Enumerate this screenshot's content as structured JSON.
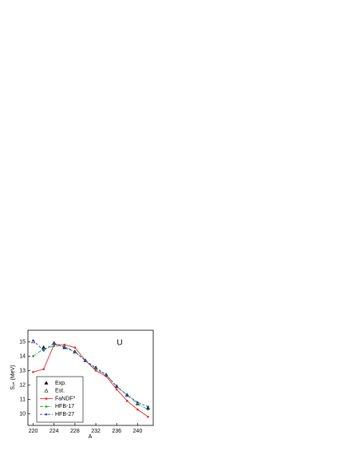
{
  "chart_data": {
    "type": "line",
    "annotation": "U",
    "xlabel": "A",
    "ylabel": "S₂ₙ (MeV)",
    "x": [
      220,
      222,
      224,
      226,
      228,
      230,
      232,
      234,
      236,
      238,
      240,
      242
    ],
    "series": [
      {
        "name": "Exp.",
        "color": "#000000",
        "marker": "triangle",
        "line": "none",
        "values": [
          null,
          14.6,
          14.9,
          14.6,
          14.3,
          13.7,
          13.2,
          12.7,
          11.9,
          11.3,
          10.7,
          10.4
        ]
      },
      {
        "name": "Est.",
        "color": "#000000",
        "marker": "triangle-open",
        "line": "none",
        "values": [
          15.0,
          null,
          null,
          null,
          null,
          null,
          null,
          null,
          null,
          null,
          null,
          null
        ]
      },
      {
        "name": "FaNDF⁰",
        "color": "#e8251f",
        "marker": "circle",
        "line": "solid",
        "values": [
          12.9,
          13.1,
          14.8,
          14.8,
          14.6,
          13.7,
          13.0,
          12.6,
          11.7,
          10.9,
          10.3,
          9.8
        ]
      },
      {
        "name": "HFB-17",
        "color": "#2a9a3a",
        "marker": "circle",
        "line": "dashdot",
        "values": [
          14.0,
          14.5,
          14.7,
          14.7,
          14.3,
          13.7,
          13.1,
          12.7,
          11.9,
          11.3,
          10.7,
          10.3
        ]
      },
      {
        "name": "HFB-27",
        "color": "#1f3fbf",
        "marker": "circle",
        "line": "dash",
        "values": [
          15.1,
          14.4,
          14.9,
          14.6,
          14.3,
          13.7,
          13.2,
          12.7,
          11.9,
          11.3,
          10.8,
          10.5
        ]
      }
    ],
    "xlim": [
      219,
      243
    ],
    "ylim": [
      9.2,
      15.8
    ],
    "xticks": [
      220,
      224,
      228,
      232,
      236,
      240
    ],
    "yticks": [
      10,
      11,
      12,
      13,
      14,
      15
    ]
  }
}
